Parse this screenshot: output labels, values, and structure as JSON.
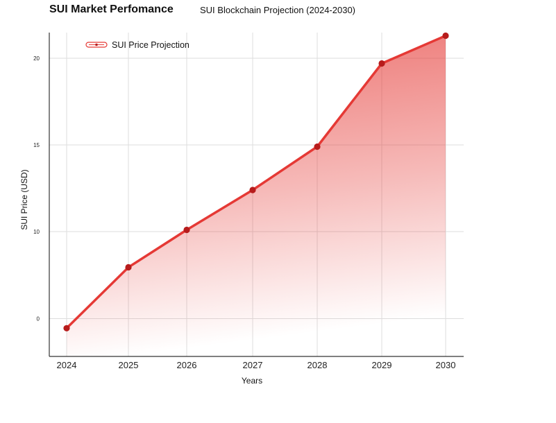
{
  "header": {
    "title": "SUI Market Perfomance",
    "subtitle": "SUI Blockchain Projection (2024-2030)"
  },
  "colors": {
    "line": "#e53935",
    "point": "#b71c1c",
    "fill_top": "#e53935",
    "grid": "#dddddd",
    "axis": "#333333"
  },
  "chart_data": {
    "type": "area",
    "title": "SUI Market Perfomance",
    "subtitle": "SUI Blockchain Projection (2024-2030)",
    "xlabel": "Years",
    "ylabel": "SUI Price (USD)",
    "categories": [
      "2024",
      "2025",
      "2026",
      "2027",
      "2028",
      "2029",
      "2030"
    ],
    "series": [
      {
        "name": "SUI Price Projection",
        "values": [
          -1.1,
          5.9,
          10.1,
          12.4,
          14.9,
          19.7,
          21.3
        ]
      }
    ],
    "y_ticks": [
      0,
      10,
      15,
      20
    ],
    "ylim": [
      -2.2,
      22.5
    ],
    "grid": true,
    "legend_position": "top-left"
  }
}
